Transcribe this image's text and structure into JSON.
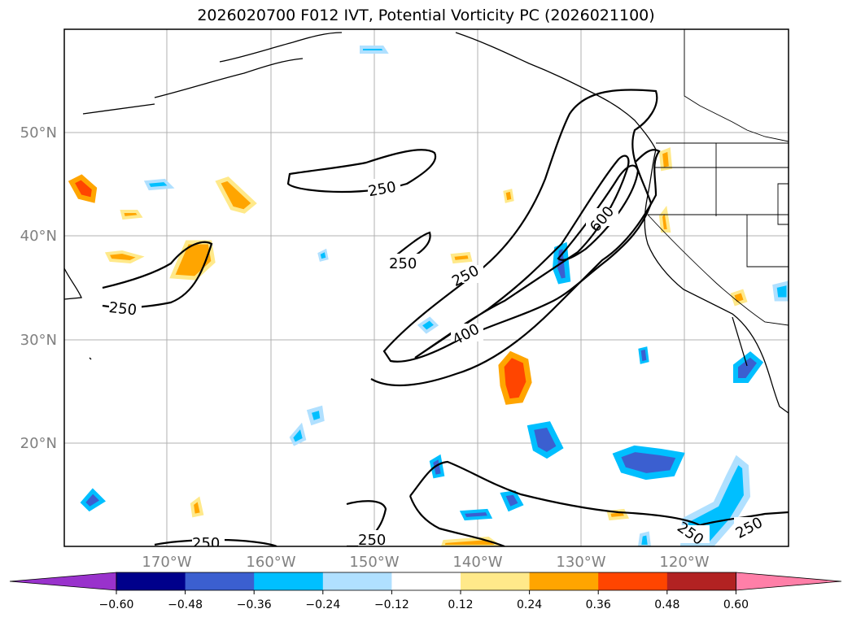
{
  "title": "2026020700 F012 IVT, Potential Vorticity PC (2026021100)",
  "map": {
    "lat_labels": [
      "50°N",
      "40°N",
      "30°N",
      "20°N"
    ],
    "lon_labels": [
      "170°W",
      "160°W",
      "150°W",
      "140°W",
      "130°W",
      "120°W"
    ],
    "ivt_contour_labels": [
      "250",
      "250",
      "250",
      "250",
      "400",
      "600",
      "250",
      "250",
      "250",
      "250"
    ]
  },
  "colorbar": {
    "ticks": [
      "−0.60",
      "−0.48",
      "−0.36",
      "−0.24",
      "−0.12",
      "0.12",
      "0.24",
      "0.36",
      "0.48",
      "0.60"
    ],
    "colors": [
      "#9932cc",
      "#00008b",
      "#3b5fd0",
      "#00bfff",
      "#b0e0ff",
      "#ffffff",
      "#ffe98a",
      "#ffa500",
      "#ff4500",
      "#b22222",
      "#ff7fa8",
      "#ff7fa8"
    ]
  }
}
